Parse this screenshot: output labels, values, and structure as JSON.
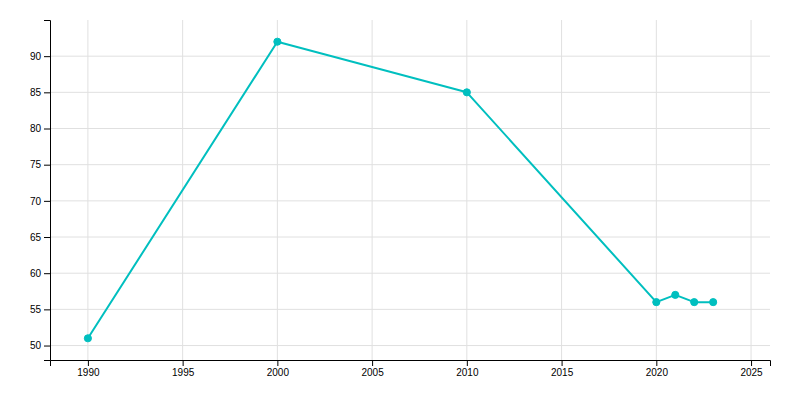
{
  "chart_data": {
    "type": "line",
    "x": [
      1990,
      2000,
      2010,
      2020,
      2021,
      2022,
      2023
    ],
    "values": [
      51,
      92,
      85,
      56,
      57,
      56,
      56
    ],
    "color": "#00BFBF",
    "marker": "circle",
    "xlim": [
      1988,
      2026
    ],
    "ylim": [
      48,
      95
    ],
    "xticks": [
      1990,
      1995,
      2000,
      2005,
      2010,
      2015,
      2020,
      2025
    ],
    "yticks": [
      50,
      55,
      60,
      65,
      70,
      75,
      80,
      85,
      90
    ],
    "grid": true
  }
}
